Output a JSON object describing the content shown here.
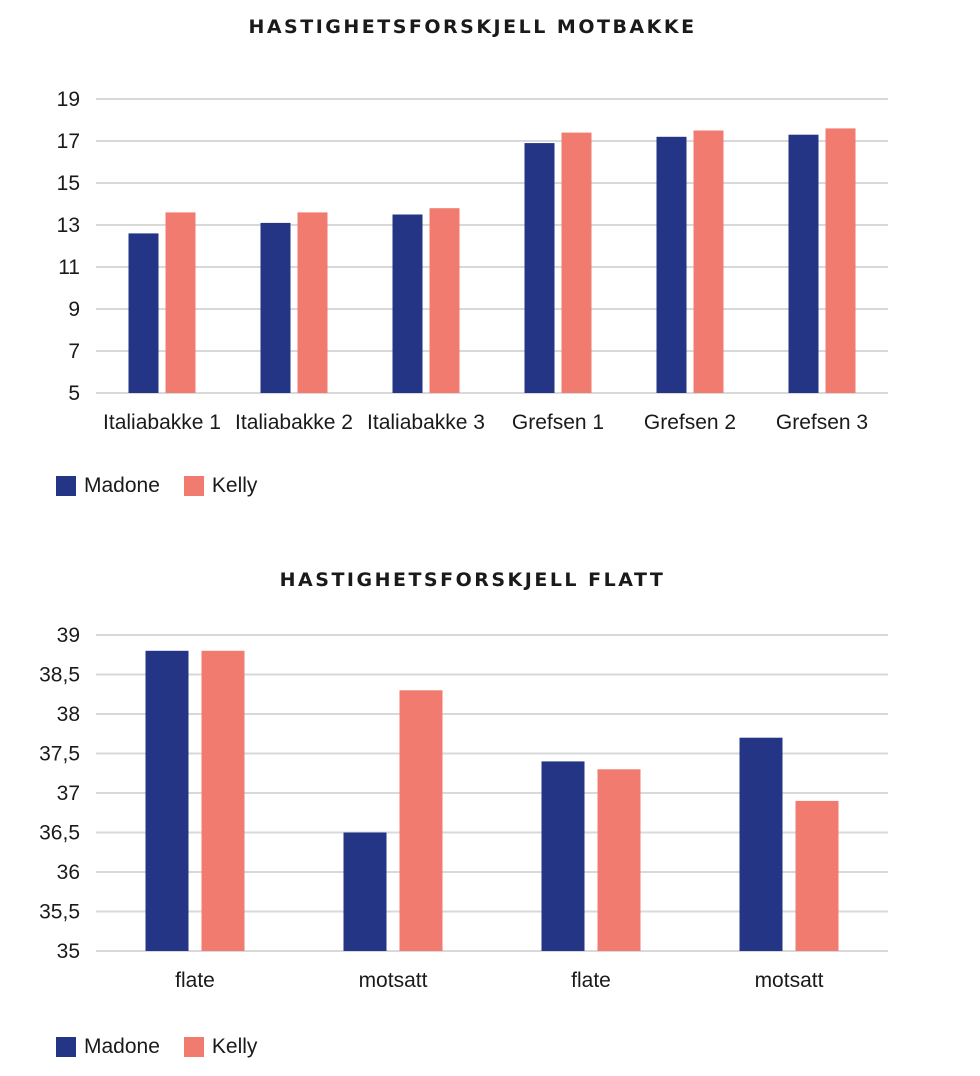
{
  "colors": {
    "madone": "#233584",
    "kelly": "#f27b70",
    "grid": "#d9d9d9"
  },
  "chart_data": [
    {
      "type": "bar",
      "title": "HASTIGHETSFORSKJELL MOTBAKKE",
      "categories": [
        "Italiabakke 1",
        "Italiabakke 2",
        "Italiabakke 3",
        "Grefsen 1",
        "Grefsen 2",
        "Grefsen 3"
      ],
      "series": [
        {
          "name": "Madone",
          "values": [
            12.6,
            13.1,
            13.5,
            16.9,
            17.2,
            17.3
          ]
        },
        {
          "name": "Kelly",
          "values": [
            13.6,
            13.6,
            13.8,
            17.4,
            17.5,
            17.6
          ]
        }
      ],
      "yticks": [
        "5",
        "7",
        "9",
        "11",
        "13",
        "15",
        "17",
        "19"
      ],
      "ylim": [
        5,
        19
      ],
      "grid": true,
      "legend": "bottom-left"
    },
    {
      "type": "bar",
      "title": "HASTIGHETSFORSKJELL FLATT",
      "categories": [
        "flate",
        "motsatt",
        "flate",
        "motsatt"
      ],
      "series": [
        {
          "name": "Madone",
          "values": [
            38.8,
            36.5,
            37.4,
            37.7
          ]
        },
        {
          "name": "Kelly",
          "values": [
            38.8,
            38.3,
            37.3,
            36.9
          ]
        }
      ],
      "yticks": [
        "35",
        "35,5",
        "36",
        "36,5",
        "37",
        "37,5",
        "38",
        "38,5",
        "39"
      ],
      "ylim": [
        35,
        39
      ],
      "grid": true,
      "legend": "bottom-left"
    }
  ]
}
